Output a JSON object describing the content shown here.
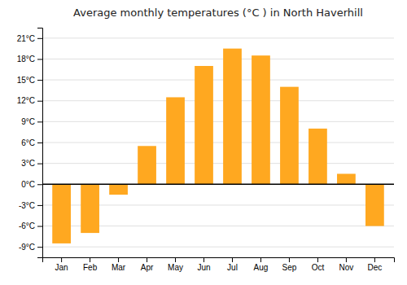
{
  "chart_data": {
    "type": "bar",
    "title": "Average monthly temperatures (°C ) in North Haverhill",
    "categories": [
      "Jan",
      "Feb",
      "Mar",
      "Apr",
      "May",
      "Jun",
      "Jul",
      "Aug",
      "Sep",
      "Oct",
      "Nov",
      "Dec"
    ],
    "values": [
      -8.5,
      -7.0,
      -1.5,
      5.5,
      12.5,
      17.0,
      19.5,
      18.5,
      14.0,
      8.0,
      1.5,
      -6.0
    ],
    "color": "#FFA820",
    "ylim": [
      -10.5,
      22.5
    ],
    "yticks": [
      {
        "value": -9,
        "label": "-9°C"
      },
      {
        "value": -6,
        "label": "-6°C"
      },
      {
        "value": -3,
        "label": "-3°C"
      },
      {
        "value": 0,
        "label": "0°C"
      },
      {
        "value": 3,
        "label": "3°C"
      },
      {
        "value": 6,
        "label": "6°C"
      },
      {
        "value": 9,
        "label": "9°C"
      },
      {
        "value": 12,
        "label": "12°C"
      },
      {
        "value": 15,
        "label": "15°C"
      },
      {
        "value": 18,
        "label": "18°C"
      },
      {
        "value": 21,
        "label": "21°C"
      }
    ],
    "grid": true
  }
}
